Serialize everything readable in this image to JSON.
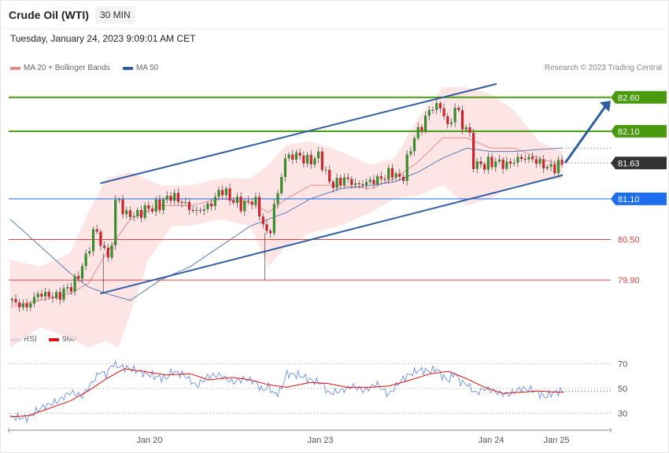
{
  "header": {
    "title": "Crude Oil (WTI)",
    "timeframe": "30 MIN",
    "datetime": "Tuesday, January 24, 2023 9:09:01 AM CET"
  },
  "legend": {
    "ma20": "MA 20 + Bollinger Bands",
    "ma50": "MA 50",
    "rsi": "RSI",
    "ma9": "9MA",
    "copyright": "Research © 2023 Trading Central"
  },
  "colors": {
    "bullish": "#3a8a2e",
    "bearish": "#c8262c",
    "bollinger_fill": "#fde0e0",
    "ma20": "#f08a8a",
    "ma50": "#5b7bb4",
    "channel": "#2f5fa0",
    "resistance": "#4a9a10",
    "pivot": "#1e6ef0",
    "support": "#e04040",
    "last_price": "#333333",
    "rsi": "#6a8ee6",
    "rsi_ma": "#e01010"
  },
  "chart_data": [
    {
      "type": "candlestick",
      "title": "Crude Oil (WTI)",
      "timeframe": "30 MIN",
      "x_tick_labels": [
        "Jan 20",
        "Jan 23",
        "Jan 24",
        "Jan 25"
      ],
      "ylim": [
        79.25,
        82.9
      ],
      "last_price": 81.63,
      "levels": [
        {
          "value": 82.6,
          "label": "82.60",
          "kind": "resistance"
        },
        {
          "value": 82.1,
          "label": "82.10",
          "kind": "resistance"
        },
        {
          "value": 81.63,
          "label": "81.63",
          "kind": "last"
        },
        {
          "value": 81.1,
          "label": "81.10",
          "kind": "pivot"
        },
        {
          "value": 80.5,
          "label": "80.50",
          "kind": "support"
        },
        {
          "value": 79.9,
          "label": "79.90",
          "kind": "support"
        }
      ],
      "channel": {
        "upper": [
          [
            0.15,
            81.33
          ],
          [
            0.81,
            82.8
          ]
        ],
        "lower": [
          [
            0.15,
            79.7
          ],
          [
            0.92,
            81.45
          ]
        ]
      },
      "forecast_arrow": [
        [
          0.924,
          81.63
        ],
        [
          1.0,
          82.55
        ]
      ],
      "anchors": [
        [
          0.0,
          79.6
        ],
        [
          0.03,
          79.5
        ],
        [
          0.05,
          79.7
        ],
        [
          0.08,
          79.65
        ],
        [
          0.11,
          79.85
        ],
        [
          0.13,
          80.25
        ],
        [
          0.145,
          80.7
        ],
        [
          0.155,
          80.4
        ],
        [
          0.17,
          80.2
        ],
        [
          0.18,
          81.25
        ],
        [
          0.19,
          80.9
        ],
        [
          0.21,
          80.85
        ],
        [
          0.23,
          80.95
        ],
        [
          0.25,
          81.0
        ],
        [
          0.27,
          81.15
        ],
        [
          0.29,
          81.05
        ],
        [
          0.31,
          80.9
        ],
        [
          0.335,
          81.0
        ],
        [
          0.355,
          81.25
        ],
        [
          0.37,
          81.1
        ],
        [
          0.39,
          81.0
        ],
        [
          0.41,
          81.1
        ],
        [
          0.425,
          80.7
        ],
        [
          0.435,
          80.5
        ],
        [
          0.44,
          80.95
        ],
        [
          0.45,
          81.2
        ],
        [
          0.46,
          81.7
        ],
        [
          0.48,
          81.75
        ],
        [
          0.5,
          81.65
        ],
        [
          0.52,
          81.75
        ],
        [
          0.525,
          81.5
        ],
        [
          0.54,
          81.3
        ],
        [
          0.56,
          81.4
        ],
        [
          0.58,
          81.3
        ],
        [
          0.6,
          81.35
        ],
        [
          0.62,
          81.4
        ],
        [
          0.64,
          81.5
        ],
        [
          0.655,
          81.35
        ],
        [
          0.66,
          81.55
        ],
        [
          0.675,
          82.0
        ],
        [
          0.69,
          82.2
        ],
        [
          0.7,
          82.4
        ],
        [
          0.715,
          82.5
        ],
        [
          0.725,
          82.35
        ],
        [
          0.735,
          82.1
        ],
        [
          0.745,
          82.55
        ],
        [
          0.755,
          82.15
        ],
        [
          0.765,
          82.2
        ],
        [
          0.775,
          81.6
        ],
        [
          0.79,
          81.6
        ],
        [
          0.81,
          81.65
        ],
        [
          0.83,
          81.6
        ],
        [
          0.85,
          81.7
        ],
        [
          0.87,
          81.7
        ],
        [
          0.89,
          81.6
        ],
        [
          0.905,
          81.55
        ],
        [
          0.922,
          81.63
        ]
      ],
      "bollinger": {
        "upper": [
          [
            0.0,
            80.2
          ],
          [
            0.05,
            80.1
          ],
          [
            0.1,
            80.3
          ],
          [
            0.13,
            80.9
          ],
          [
            0.16,
            81.4
          ],
          [
            0.2,
            81.5
          ],
          [
            0.25,
            81.3
          ],
          [
            0.3,
            81.3
          ],
          [
            0.35,
            81.4
          ],
          [
            0.4,
            81.4
          ],
          [
            0.43,
            81.6
          ],
          [
            0.46,
            81.9
          ],
          [
            0.5,
            81.95
          ],
          [
            0.55,
            81.8
          ],
          [
            0.6,
            81.6
          ],
          [
            0.64,
            81.7
          ],
          [
            0.68,
            82.3
          ],
          [
            0.72,
            82.75
          ],
          [
            0.76,
            82.75
          ],
          [
            0.8,
            82.65
          ],
          [
            0.84,
            82.4
          ],
          [
            0.88,
            81.95
          ],
          [
            0.92,
            81.8
          ]
        ],
        "lower": [
          [
            0.0,
            78.9
          ],
          [
            0.05,
            79.2
          ],
          [
            0.1,
            79.05
          ],
          [
            0.13,
            78.9
          ],
          [
            0.16,
            79.0
          ],
          [
            0.18,
            78.9
          ],
          [
            0.2,
            79.4
          ],
          [
            0.23,
            80.2
          ],
          [
            0.27,
            80.7
          ],
          [
            0.3,
            80.7
          ],
          [
            0.35,
            80.8
          ],
          [
            0.4,
            80.7
          ],
          [
            0.43,
            80.1
          ],
          [
            0.46,
            80.4
          ],
          [
            0.5,
            80.6
          ],
          [
            0.55,
            80.7
          ],
          [
            0.6,
            80.9
          ],
          [
            0.64,
            81.1
          ],
          [
            0.68,
            81.15
          ],
          [
            0.72,
            81.3
          ],
          [
            0.76,
            81.0
          ],
          [
            0.8,
            81.1
          ],
          [
            0.84,
            81.3
          ],
          [
            0.88,
            81.35
          ],
          [
            0.92,
            81.4
          ]
        ]
      },
      "ma20": [
        [
          0.0,
          79.5
        ],
        [
          0.05,
          79.6
        ],
        [
          0.1,
          79.7
        ],
        [
          0.13,
          79.85
        ],
        [
          0.16,
          80.3
        ],
        [
          0.2,
          80.8
        ],
        [
          0.25,
          81.0
        ],
        [
          0.3,
          81.0
        ],
        [
          0.35,
          81.1
        ],
        [
          0.4,
          81.05
        ],
        [
          0.43,
          80.9
        ],
        [
          0.46,
          81.1
        ],
        [
          0.5,
          81.3
        ],
        [
          0.55,
          81.3
        ],
        [
          0.6,
          81.25
        ],
        [
          0.64,
          81.4
        ],
        [
          0.68,
          81.65
        ],
        [
          0.72,
          82.0
        ],
        [
          0.76,
          82.0
        ],
        [
          0.8,
          81.85
        ],
        [
          0.84,
          81.85
        ],
        [
          0.88,
          81.7
        ],
        [
          0.92,
          81.6
        ]
      ],
      "ma50": [
        [
          0.0,
          80.8
        ],
        [
          0.05,
          80.4
        ],
        [
          0.1,
          80.0
        ],
        [
          0.13,
          79.8
        ],
        [
          0.16,
          79.7
        ],
        [
          0.2,
          79.6
        ],
        [
          0.25,
          79.9
        ],
        [
          0.3,
          80.1
        ],
        [
          0.35,
          80.4
        ],
        [
          0.4,
          80.7
        ],
        [
          0.43,
          80.8
        ],
        [
          0.46,
          80.9
        ],
        [
          0.5,
          81.1
        ],
        [
          0.55,
          81.25
        ],
        [
          0.6,
          81.3
        ],
        [
          0.64,
          81.35
        ],
        [
          0.68,
          81.5
        ],
        [
          0.72,
          81.7
        ],
        [
          0.76,
          81.85
        ],
        [
          0.8,
          81.8
        ],
        [
          0.84,
          81.8
        ],
        [
          0.88,
          81.83
        ],
        [
          0.92,
          81.85
        ]
      ]
    },
    {
      "type": "line",
      "series": [
        {
          "name": "RSI"
        },
        {
          "name": "9MA"
        }
      ],
      "ylim": [
        20,
        80
      ],
      "y_tick_labels": [
        "70",
        "50",
        "30"
      ],
      "y_ticks": [
        70,
        50,
        30
      ],
      "rsi": [
        [
          0.0,
          27
        ],
        [
          0.03,
          26
        ],
        [
          0.05,
          34
        ],
        [
          0.08,
          40
        ],
        [
          0.1,
          47
        ],
        [
          0.12,
          44
        ],
        [
          0.14,
          57
        ],
        [
          0.15,
          64
        ],
        [
          0.16,
          61
        ],
        [
          0.17,
          70
        ],
        [
          0.18,
          68
        ],
        [
          0.2,
          66
        ],
        [
          0.22,
          63
        ],
        [
          0.24,
          60
        ],
        [
          0.26,
          58
        ],
        [
          0.27,
          64
        ],
        [
          0.29,
          61
        ],
        [
          0.31,
          52
        ],
        [
          0.33,
          60
        ],
        [
          0.35,
          61
        ],
        [
          0.37,
          55
        ],
        [
          0.39,
          58
        ],
        [
          0.41,
          55
        ],
        [
          0.42,
          48
        ],
        [
          0.43,
          52
        ],
        [
          0.44,
          45
        ],
        [
          0.45,
          48
        ],
        [
          0.46,
          62
        ],
        [
          0.48,
          61
        ],
        [
          0.5,
          57
        ],
        [
          0.52,
          54
        ],
        [
          0.53,
          46
        ],
        [
          0.55,
          48
        ],
        [
          0.57,
          52
        ],
        [
          0.59,
          48
        ],
        [
          0.61,
          54
        ],
        [
          0.63,
          45
        ],
        [
          0.65,
          56
        ],
        [
          0.66,
          60
        ],
        [
          0.68,
          65
        ],
        [
          0.7,
          64
        ],
        [
          0.71,
          66
        ],
        [
          0.72,
          60
        ],
        [
          0.73,
          56
        ],
        [
          0.74,
          63
        ],
        [
          0.75,
          55
        ],
        [
          0.76,
          54
        ],
        [
          0.775,
          46
        ],
        [
          0.79,
          50
        ],
        [
          0.81,
          47
        ],
        [
          0.83,
          45
        ],
        [
          0.85,
          50
        ],
        [
          0.87,
          49
        ],
        [
          0.89,
          43
        ],
        [
          0.905,
          47
        ],
        [
          0.922,
          48
        ]
      ],
      "ma9": [
        [
          0.0,
          27
        ],
        [
          0.03,
          28
        ],
        [
          0.06,
          33
        ],
        [
          0.1,
          40
        ],
        [
          0.13,
          48
        ],
        [
          0.16,
          58
        ],
        [
          0.19,
          66
        ],
        [
          0.22,
          64
        ],
        [
          0.26,
          61
        ],
        [
          0.3,
          62
        ],
        [
          0.33,
          57
        ],
        [
          0.37,
          59
        ],
        [
          0.4,
          57
        ],
        [
          0.43,
          53
        ],
        [
          0.46,
          51
        ],
        [
          0.5,
          55
        ],
        [
          0.53,
          54
        ],
        [
          0.56,
          51
        ],
        [
          0.6,
          51
        ],
        [
          0.63,
          52
        ],
        [
          0.66,
          56
        ],
        [
          0.7,
          62
        ],
        [
          0.73,
          64
        ],
        [
          0.76,
          58
        ],
        [
          0.79,
          51
        ],
        [
          0.82,
          46
        ],
        [
          0.85,
          47
        ],
        [
          0.88,
          48
        ],
        [
          0.91,
          47
        ],
        [
          0.922,
          47
        ]
      ]
    }
  ]
}
